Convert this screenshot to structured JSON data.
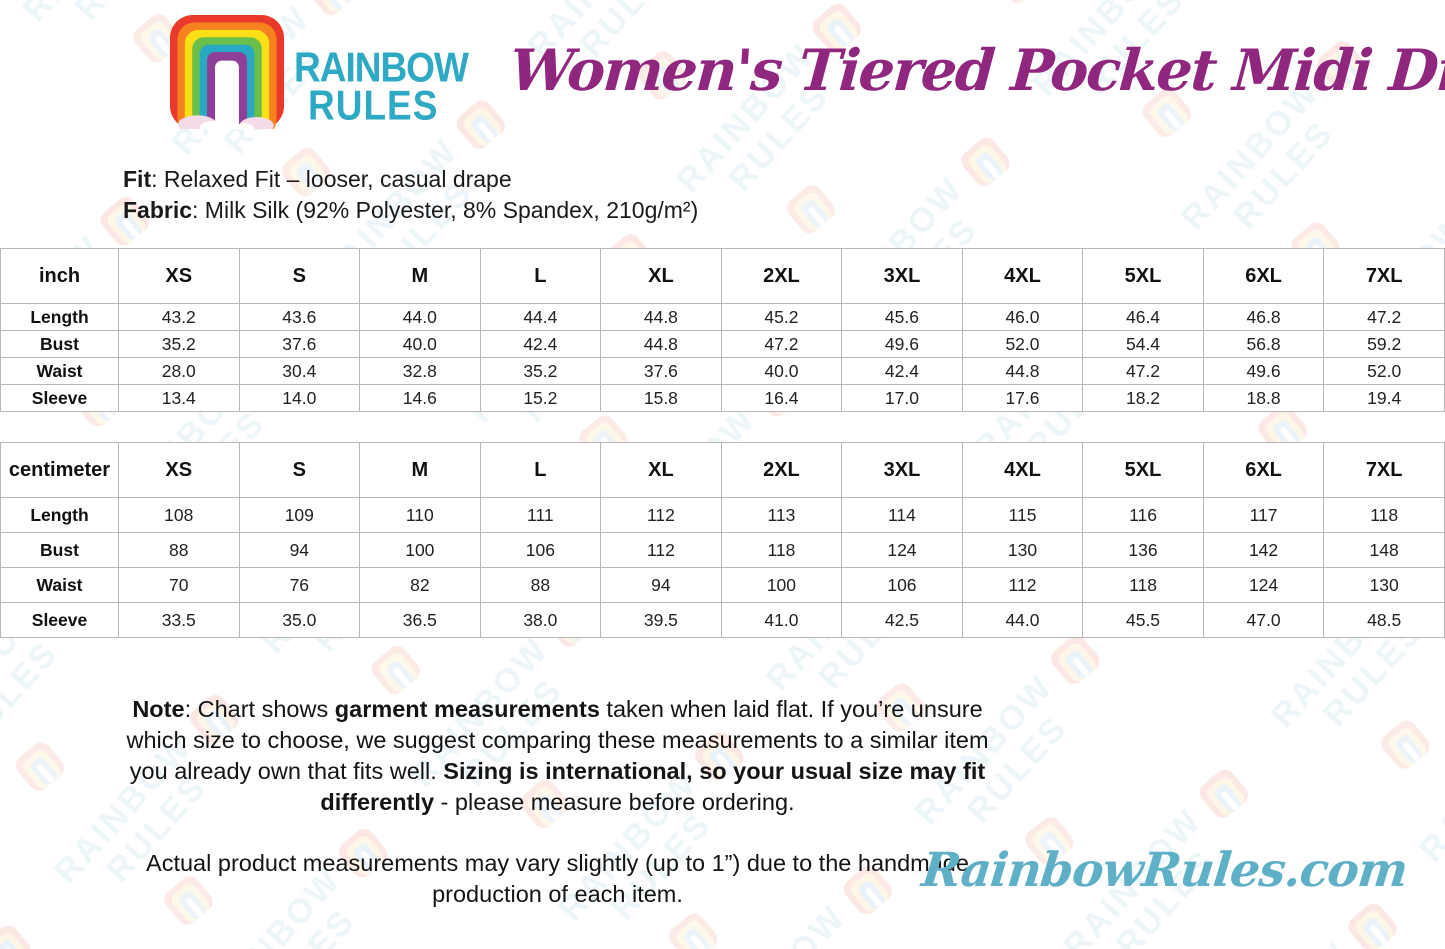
{
  "brand": {
    "logo_line1": "RAINBOW",
    "logo_line2": "RULES",
    "website": "RainbowRules.com"
  },
  "page": {
    "title": "Women's Tiered Pocket Midi Dress"
  },
  "product_info": {
    "fit_segments": [
      {
        "text": "Fit",
        "bold": true
      },
      {
        "text": ": Relaxed Fit – looser, casual drape",
        "bold": false
      }
    ],
    "fabric_segments": [
      {
        "text": "Fabric",
        "bold": true
      },
      {
        "text": ": Milk Silk (92% Polyester, 8% Spandex, 210g/m²)",
        "bold": false
      }
    ]
  },
  "size_tables": [
    {
      "unit": "inch",
      "columns": [
        "XS",
        "S",
        "M",
        "L",
        "XL",
        "2XL",
        "3XL",
        "4XL",
        "5XL",
        "6XL",
        "7XL"
      ],
      "rows": [
        {
          "label": "Length",
          "values": [
            "43.2",
            "43.6",
            "44.0",
            "44.4",
            "44.8",
            "45.2",
            "45.6",
            "46.0",
            "46.4",
            "46.8",
            "47.2"
          ]
        },
        {
          "label": "Bust",
          "values": [
            "35.2",
            "37.6",
            "40.0",
            "42.4",
            "44.8",
            "47.2",
            "49.6",
            "52.0",
            "54.4",
            "56.8",
            "59.2"
          ]
        },
        {
          "label": "Waist",
          "values": [
            "28.0",
            "30.4",
            "32.8",
            "35.2",
            "37.6",
            "40.0",
            "42.4",
            "44.8",
            "47.2",
            "49.6",
            "52.0"
          ]
        },
        {
          "label": "Sleeve",
          "values": [
            "13.4",
            "14.0",
            "14.6",
            "15.2",
            "15.8",
            "16.4",
            "17.0",
            "17.6",
            "18.2",
            "18.8",
            "19.4"
          ]
        }
      ]
    },
    {
      "unit": "centimeter",
      "columns": [
        "XS",
        "S",
        "M",
        "L",
        "XL",
        "2XL",
        "3XL",
        "4XL",
        "5XL",
        "6XL",
        "7XL"
      ],
      "rows": [
        {
          "label": "Length",
          "values": [
            "108",
            "109",
            "110",
            "111",
            "112",
            "113",
            "114",
            "115",
            "116",
            "117",
            "118"
          ]
        },
        {
          "label": "Bust",
          "values": [
            "88",
            "94",
            "100",
            "106",
            "112",
            "118",
            "124",
            "130",
            "136",
            "142",
            "148"
          ]
        },
        {
          "label": "Waist",
          "values": [
            "70",
            "76",
            "82",
            "88",
            "94",
            "100",
            "106",
            "112",
            "118",
            "124",
            "130"
          ]
        },
        {
          "label": "Sleeve",
          "values": [
            "33.5",
            "35.0",
            "36.5",
            "38.0",
            "39.5",
            "41.0",
            "42.5",
            "44.0",
            "45.5",
            "47.0",
            "48.5"
          ]
        }
      ]
    }
  ],
  "notes": {
    "main_segments": [
      {
        "text": "Note",
        "bold": true
      },
      {
        "text": ": Chart shows ",
        "bold": false
      },
      {
        "text": "garment measurements",
        "bold": true
      },
      {
        "text": " taken when laid flat. If you’re unsure which size to choose, we suggest comparing these measurements to a similar item you already own that fits well. ",
        "bold": false
      },
      {
        "text": "Sizing is international, so your usual size may fit differently",
        "bold": true
      },
      {
        "text": " - please measure before ordering.",
        "bold": false
      }
    ],
    "disclaimer": "Actual product measurements may vary slightly (up to 1”) due to the handmade production of each item."
  },
  "watermark": {
    "text_line1": "RAINBOW",
    "text_line2": "RULES"
  },
  "colors": {
    "title_magenta": "#90277e",
    "brand_teal": "#2ea9c3",
    "website_blue": "#5fb0c7",
    "table_border": "#b7b7b7",
    "rainbow_bands": [
      "#e8392b",
      "#f6821f",
      "#fcdf17",
      "#6abf4b",
      "#29a8c4",
      "#8e3f97"
    ],
    "cloud_pink": "#f5dbe7"
  }
}
